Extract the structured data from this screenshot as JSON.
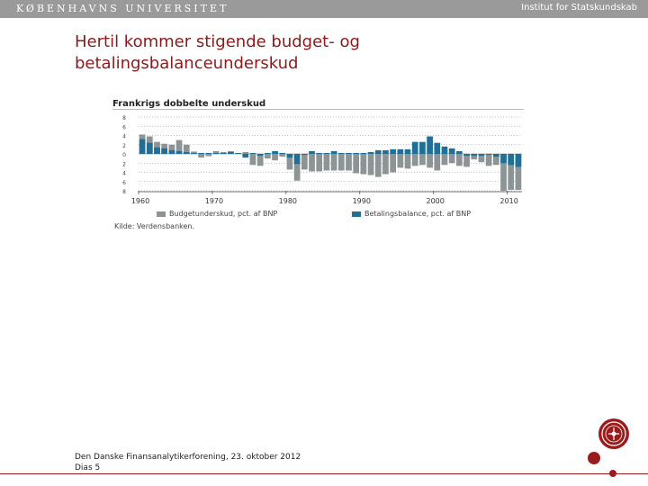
{
  "header": {
    "university": "KØBENHAVNS UNIVERSITET",
    "institute": "Institut for Statskundskab"
  },
  "slide": {
    "title": "Hertil kommer stigende budget- og betalingsbalanceunderskud"
  },
  "footer": {
    "line1": "Den Danske Finansanalytikerforening, 23. oktober 2012",
    "line2": "Dias 5"
  },
  "colors": {
    "brand": "#9b1c1c",
    "budget": "#8c9496",
    "balance": "#1f6f96"
  },
  "chart_data": {
    "type": "bar",
    "title": "Frankrigs dobbelte underskud",
    "source": "Kilde: Verdensbanken.",
    "ylim": [
      -8,
      8
    ],
    "yticks": [
      8,
      6,
      4,
      2,
      0,
      -2,
      -4,
      -6,
      -8
    ],
    "ytick_labels": [
      "8",
      "6",
      "4",
      "2",
      "0",
      "2",
      "4",
      "6",
      "8"
    ],
    "xticks": [
      1960,
      1970,
      1980,
      1990,
      2000,
      2010
    ],
    "categories": [
      1960,
      1961,
      1962,
      1963,
      1964,
      1965,
      1966,
      1967,
      1968,
      1969,
      1970,
      1971,
      1972,
      1973,
      1974,
      1975,
      1976,
      1977,
      1978,
      1979,
      1980,
      1981,
      1982,
      1983,
      1984,
      1985,
      1986,
      1987,
      1988,
      1989,
      1990,
      1991,
      1992,
      1993,
      1994,
      1995,
      1996,
      1997,
      1998,
      1999,
      2000,
      2001,
      2002,
      2003,
      2004,
      2005,
      2006,
      2007,
      2008,
      2009,
      2010,
      2011
    ],
    "series": [
      {
        "name": "Budgetunderskud, pct. af BNP",
        "color": "#8c9496",
        "values": [
          4.2,
          3.8,
          2.6,
          2.2,
          2.0,
          3.0,
          2.0,
          0.5,
          -0.8,
          -0.5,
          0.6,
          0.4,
          0.6,
          0.2,
          0.4,
          -2.4,
          -2.6,
          -1.0,
          -1.4,
          -0.6,
          -3.4,
          -5.8,
          -3.4,
          -3.8,
          -3.8,
          -3.6,
          -3.6,
          -3.6,
          -3.6,
          -4.2,
          -4.4,
          -4.6,
          -5.0,
          -4.4,
          -4.0,
          -3.0,
          -3.2,
          -2.6,
          -2.4,
          -3.0,
          -3.6,
          -2.4,
          -2.0,
          -2.6,
          -2.8,
          -1.2,
          -1.8,
          -2.6,
          -2.4,
          -8.0,
          -7.8,
          -7.8
        ]
      },
      {
        "name": "Betalingsbalance, pct. af BNP",
        "color": "#1f6f96",
        "values": [
          3.2,
          2.4,
          1.4,
          1.2,
          0.8,
          0.6,
          0.4,
          0.2,
          0.2,
          0.2,
          0.2,
          0.2,
          0.4,
          0.2,
          -0.8,
          0.2,
          -0.4,
          0.2,
          0.6,
          0.2,
          -0.8,
          -2.2,
          -0.2,
          0.6,
          0.2,
          0.2,
          0.6,
          0.2,
          0.2,
          0.2,
          0.2,
          0.4,
          0.8,
          0.8,
          1.0,
          1.0,
          1.0,
          2.6,
          2.6,
          3.8,
          2.4,
          1.6,
          1.2,
          0.6,
          -0.4,
          -0.4,
          -0.4,
          -0.2,
          -0.6,
          -2.0,
          -2.4,
          -2.8
        ]
      }
    ]
  }
}
